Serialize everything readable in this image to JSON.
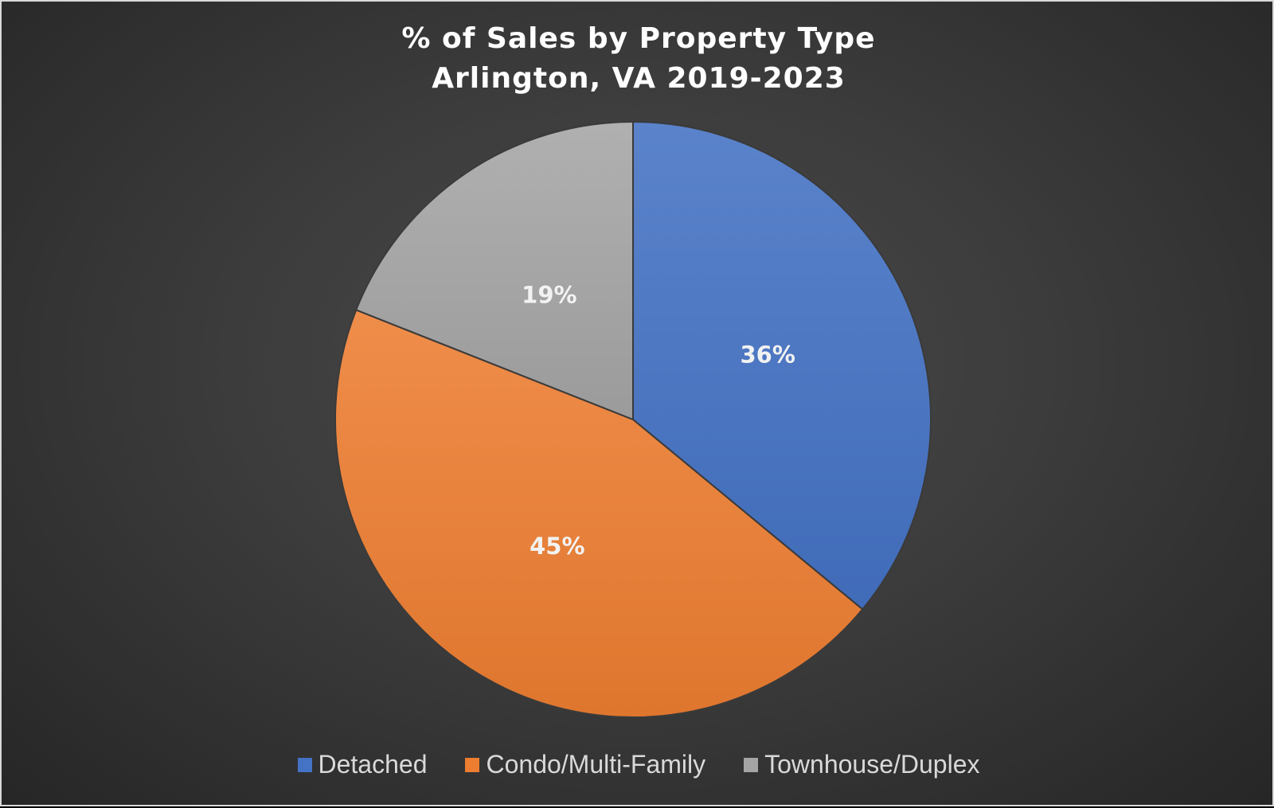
{
  "chart_data": {
    "type": "pie",
    "title_line1": "% of Sales by Property Type",
    "title_line2": "Arlington, VA 2019-2023",
    "slices": [
      {
        "name": "Detached",
        "value": 36,
        "label": "36%",
        "color": "#4472C4"
      },
      {
        "name": "Condo/Multi-Family",
        "value": 45,
        "label": "45%",
        "color": "#ED7D31"
      },
      {
        "name": "Townhouse/Duplex",
        "value": 19,
        "label": "19%",
        "color": "#A5A5A5"
      }
    ],
    "legend_position": "bottom"
  }
}
